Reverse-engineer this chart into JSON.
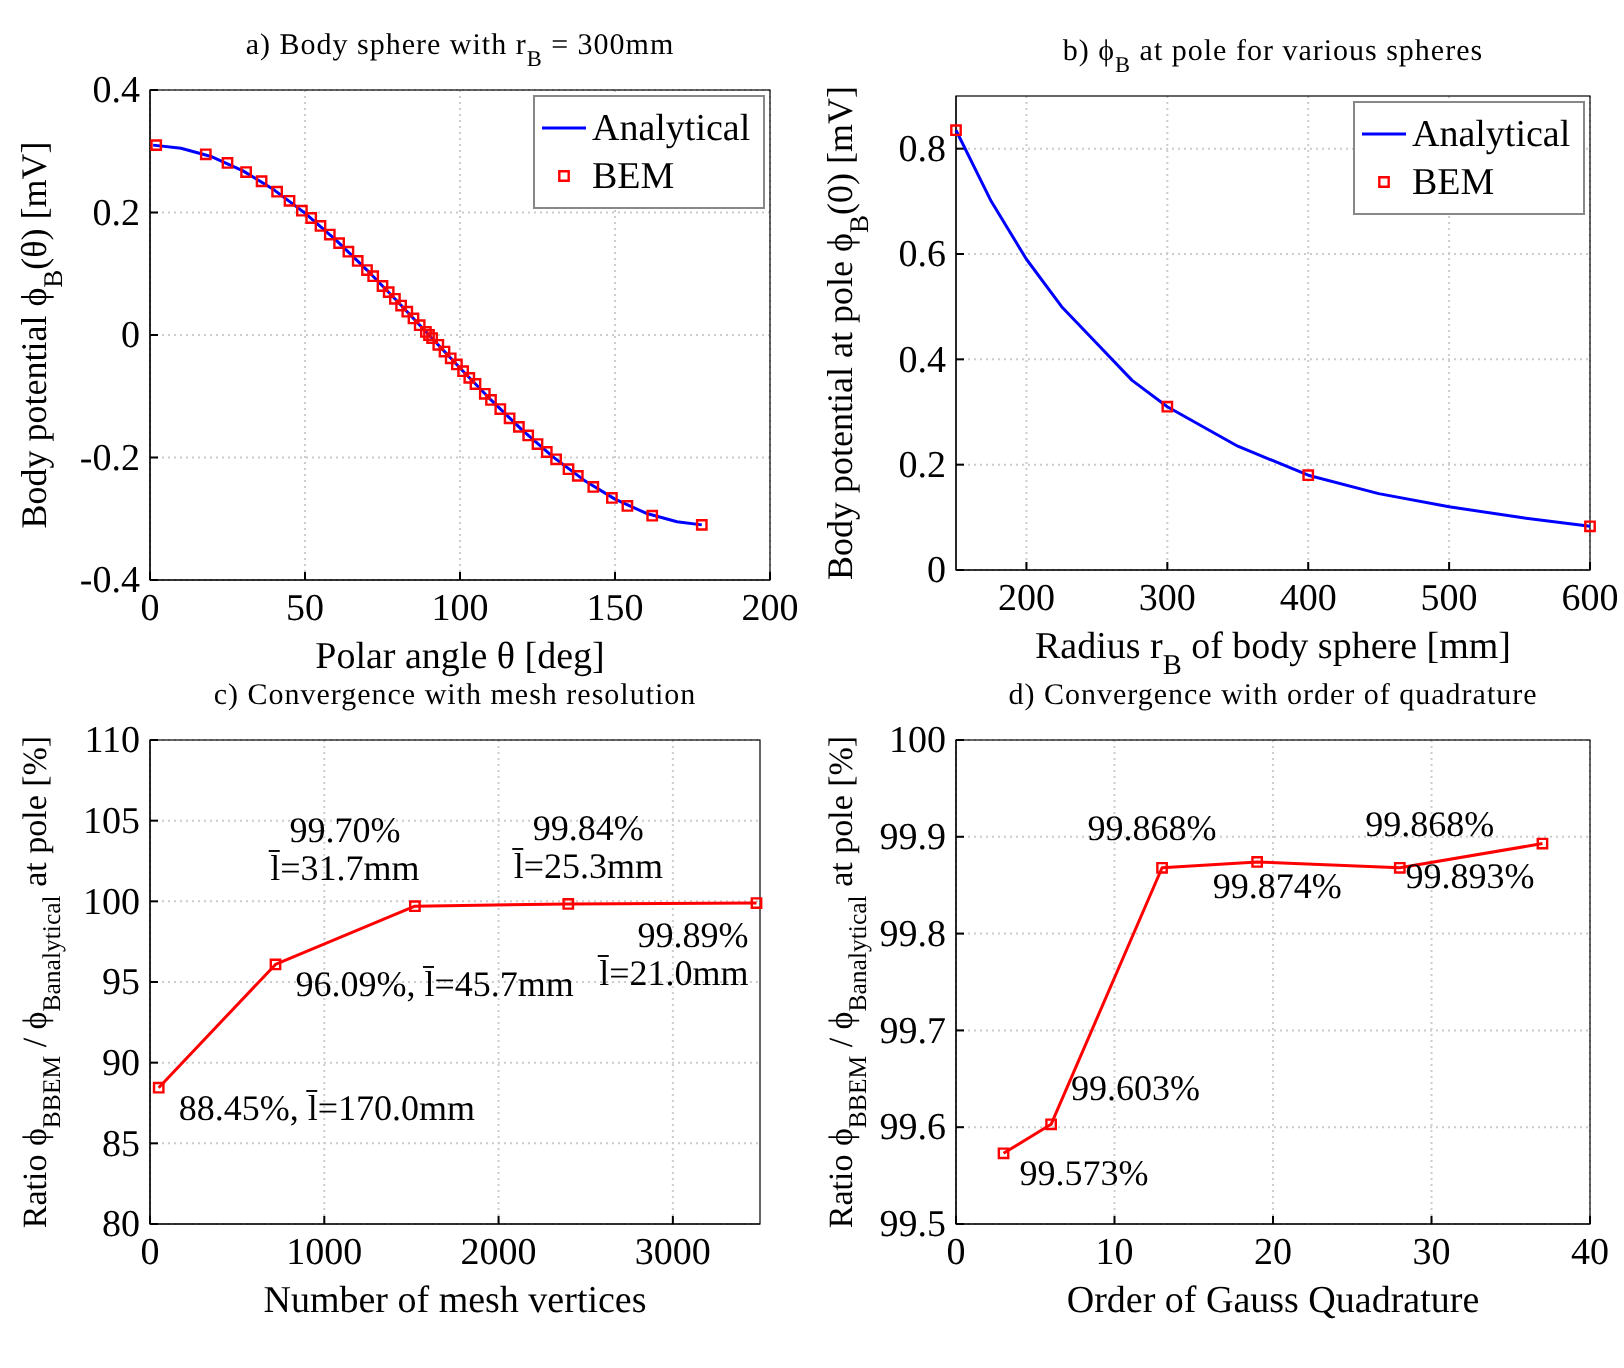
{
  "chart_data": [
    {
      "type": "line",
      "title": "a) Body sphere with r$_{B}$ = 300mm",
      "xlabel": "Polar angle θ [deg]",
      "ylabel": "Body potential ϕ$_{B}$(θ) [mV]",
      "xlim": [
        0,
        200
      ],
      "ylim": [
        -0.4,
        0.4
      ],
      "xticks": [
        0,
        50,
        100,
        150,
        200
      ],
      "yticks": [
        -0.4,
        -0.2,
        0,
        0.2,
        0.4
      ],
      "grid": true,
      "legend": "top right",
      "series": [
        {
          "name": "Analytical",
          "type": "line",
          "marker": "none",
          "color": "#0000ff",
          "x": [
            1,
            10,
            20,
            30,
            40,
            50,
            60,
            70,
            80,
            90,
            100,
            110,
            120,
            130,
            140,
            150,
            160,
            170,
            178
          ],
          "values": [
            0.31,
            0.305,
            0.291,
            0.268,
            0.237,
            0.199,
            0.155,
            0.106,
            0.054,
            0,
            -0.054,
            -0.106,
            -0.155,
            -0.199,
            -0.237,
            -0.268,
            -0.291,
            -0.305,
            -0.31
          ]
        },
        {
          "name": "BEM",
          "type": "scatter",
          "marker": "square",
          "color": "#ff0000",
          "x": [
            2,
            18,
            25,
            31,
            36,
            41,
            45,
            49,
            52,
            55,
            58,
            61,
            64,
            67,
            70,
            72,
            75,
            77,
            79,
            81,
            83,
            85,
            87,
            89,
            90,
            91,
            93,
            95,
            97,
            99,
            101,
            103,
            105,
            108,
            110,
            113,
            116,
            119,
            122,
            125,
            128,
            131,
            135,
            138,
            143,
            149,
            154,
            162,
            178
          ],
          "values": [
            0.31,
            0.295,
            0.281,
            0.266,
            0.251,
            0.234,
            0.219,
            0.203,
            0.191,
            0.178,
            0.164,
            0.15,
            0.136,
            0.121,
            0.106,
            0.096,
            0.08,
            0.07,
            0.059,
            0.048,
            0.038,
            0.027,
            0.016,
            0.005,
            0,
            -0.005,
            -0.016,
            -0.027,
            -0.038,
            -0.048,
            -0.059,
            -0.07,
            -0.08,
            -0.096,
            -0.106,
            -0.121,
            -0.136,
            -0.15,
            -0.164,
            -0.178,
            -0.191,
            -0.203,
            -0.219,
            -0.23,
            -0.248,
            -0.266,
            -0.279,
            -0.295,
            -0.31
          ]
        }
      ]
    },
    {
      "type": "line",
      "title": "b) ϕ$_{B}$ at pole for various spheres",
      "xlabel": "Radius r$_{B}$ of body sphere [mm]",
      "ylabel": "Body potential at pole ϕ$_{B}$(0) [mV]",
      "xlim": [
        150,
        600
      ],
      "ylim": [
        0,
        0.9
      ],
      "xticks": [
        200,
        300,
        400,
        500,
        600
      ],
      "yticks": [
        0,
        0.2,
        0.4,
        0.6,
        0.8
      ],
      "grid": true,
      "legend": "top right",
      "series": [
        {
          "name": "Analytical",
          "type": "line",
          "marker": "none",
          "color": "#0000ff",
          "x": [
            150,
            175,
            200,
            225,
            250,
            275,
            300,
            350,
            400,
            450,
            500,
            550,
            600
          ],
          "values": [
            0.835,
            0.7,
            0.59,
            0.5,
            0.43,
            0.36,
            0.31,
            0.235,
            0.18,
            0.145,
            0.12,
            0.1,
            0.083
          ]
        },
        {
          "name": "BEM",
          "type": "scatter",
          "marker": "square",
          "color": "#ff0000",
          "x": [
            150,
            300,
            400,
            600
          ],
          "values": [
            0.835,
            0.31,
            0.18,
            0.083
          ]
        }
      ]
    },
    {
      "type": "line",
      "title": "c) Convergence with mesh resolution",
      "xlabel": "Number of mesh vertices",
      "ylabel": "Ratio ϕ$_{B}$$_{BEM}$ / ϕ$_{B}$$_{analytical}$ at pole [%]",
      "xlim": [
        0,
        3500
      ],
      "ylim": [
        80,
        110
      ],
      "xticks": [
        0,
        1000,
        2000,
        3000
      ],
      "yticks": [
        80,
        85,
        90,
        95,
        100,
        105,
        110
      ],
      "grid": true,
      "marker": "square",
      "series": [
        {
          "color": "#ff0000",
          "x": [
            50,
            720,
            1520,
            2400,
            3480
          ],
          "values": [
            88.45,
            96.09,
            99.7,
            99.84,
            99.89
          ],
          "value_labels": [
            "88.45%, l̄=170.0mm",
            "96.09%, l̄=45.7mm",
            "99.70%\nl̄=31.7mm",
            "99.84%\nl̄=25.3mm",
            "99.89%\nl̄=21.0mm"
          ]
        }
      ]
    },
    {
      "type": "line",
      "title": "d) Convergence with order of quadrature",
      "xlabel": "Order of Gauss Quadrature",
      "ylabel": "Ratio ϕ$_{B}$$_{BEM}$ / ϕ$_{B}$$_{analytical}$ at pole [%]",
      "xlim": [
        0,
        40
      ],
      "ylim": [
        99.5,
        100
      ],
      "xticks": [
        0,
        10,
        20,
        30,
        40
      ],
      "yticks": [
        {
          "value": 99.5,
          "label": "99.5"
        },
        {
          "value": 99.6,
          "label": "99.6"
        },
        {
          "value": 99.7,
          "label": "99.7"
        },
        {
          "value": 99.8,
          "label": "99.8"
        },
        {
          "value": 99.9,
          "label": "99.9"
        },
        100
      ],
      "grid": true,
      "marker": "square",
      "series": [
        {
          "color": "#ff0000",
          "x": [
            3,
            6,
            13,
            19,
            28,
            37
          ],
          "values": [
            99.573,
            99.603,
            99.868,
            99.874,
            99.868,
            99.893
          ],
          "value_labels": [
            "99.573%",
            "99.603%",
            "99.868%",
            "99.874%",
            "99.868%",
            "99.893%"
          ]
        }
      ]
    }
  ]
}
